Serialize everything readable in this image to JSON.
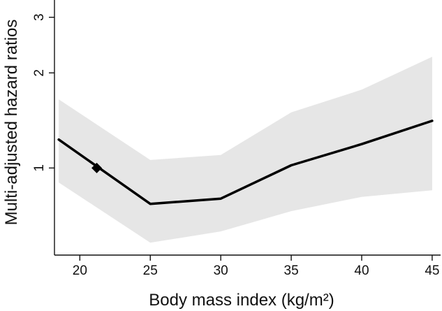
{
  "chart_data": {
    "type": "line",
    "title": "",
    "xlabel": "Body mass index (kg/m²)",
    "ylabel": "Multi-adjusted hazard ratios",
    "x_ticks": [
      "20",
      "25",
      "30",
      "35",
      "40",
      "45"
    ],
    "x_tick_values": [
      20,
      25,
      30,
      35,
      40,
      45
    ],
    "y_ticks": [
      "1",
      "2",
      "3"
    ],
    "y_tick_values": [
      1,
      2,
      3
    ],
    "y_scale": "log",
    "xlim": [
      18.2,
      45.5
    ],
    "ylim": [
      0.53,
      3.3
    ],
    "series": [
      {
        "name": "Hazard ratio",
        "x": [
          18.5,
          25,
          30,
          35,
          40,
          45
        ],
        "y": [
          1.23,
          0.77,
          0.8,
          1.02,
          1.19,
          1.41
        ]
      }
    ],
    "confidence_band": {
      "x": [
        18.5,
        25,
        30,
        35,
        40,
        45
      ],
      "lower": [
        0.9,
        0.58,
        0.63,
        0.73,
        0.81,
        0.85
      ],
      "upper": [
        1.65,
        1.06,
        1.1,
        1.5,
        1.77,
        2.25
      ]
    },
    "reference_point": {
      "x": 21.2,
      "y": 1.0
    },
    "colors": {
      "line": "#000000",
      "band": "#e6e6e6",
      "marker": "#000000",
      "axis": "#111111"
    }
  }
}
